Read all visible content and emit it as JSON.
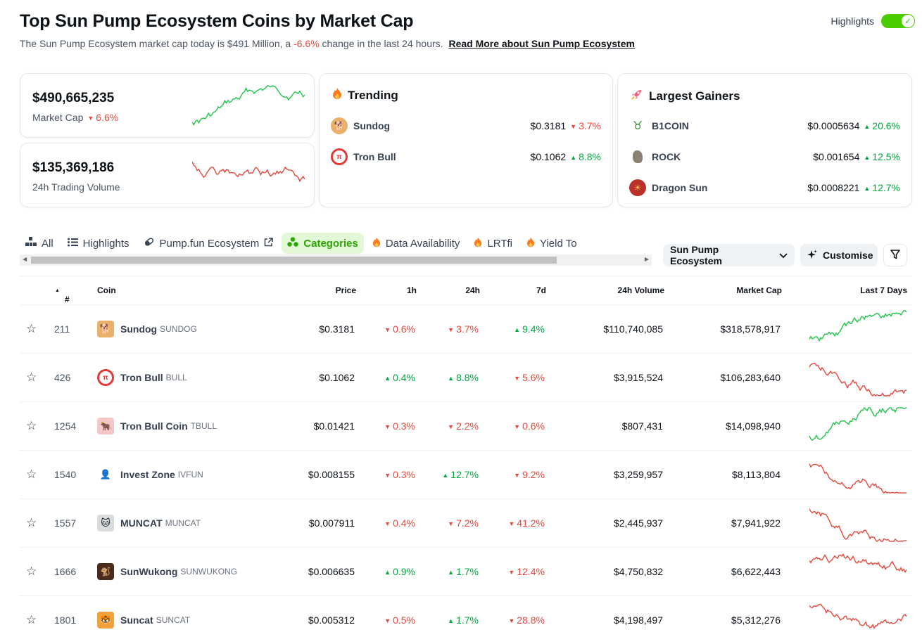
{
  "header": {
    "title": "Top Sun Pump Ecosystem Coins by Market Cap",
    "subtitle_prefix": "The Sun Pump Ecosystem market cap today is $491 Million, a",
    "subtitle_change": "-6.6%",
    "subtitle_suffix": "change in the last 24 hours.",
    "read_more": "Read More about Sun Pump Ecosystem",
    "highlights_label": "Highlights",
    "highlights_on": true
  },
  "stats": {
    "market_cap": {
      "value": "$490,665,235",
      "label": "Market Cap",
      "change": "6.6%"
    },
    "volume": {
      "value": "$135,369,186",
      "label": "24h Trading Volume"
    }
  },
  "trending": {
    "title": "Trending",
    "items": [
      {
        "name": "Sundog",
        "price": "$0.3181",
        "change": "3.7%",
        "dir": "down"
      },
      {
        "name": "Tron Bull",
        "price": "$0.1062",
        "change": "8.8%",
        "dir": "up"
      }
    ]
  },
  "gainers": {
    "title": "Largest Gainers",
    "items": [
      {
        "name": "B1COIN",
        "price": "$0.0005634",
        "change": "20.6%",
        "dir": "up"
      },
      {
        "name": "ROCK",
        "price": "$0.001654",
        "change": "12.5%",
        "dir": "up"
      },
      {
        "name": "Dragon Sun",
        "price": "$0.0008221",
        "change": "12.7%",
        "dir": "up"
      }
    ]
  },
  "tabs": [
    "All",
    "Highlights",
    "Pump.fun Ecosystem",
    "Categories",
    "Data Availability",
    "LRTfi",
    "Yield To"
  ],
  "active_tab": "Categories",
  "controls": {
    "category_select": "Sun Pump Ecosystem",
    "customise": "Customise"
  },
  "table": {
    "columns": [
      "#",
      "Coin",
      "Price",
      "1h",
      "24h",
      "7d",
      "24h Volume",
      "Market Cap",
      "Last 7 Days"
    ],
    "rows": [
      {
        "rank": "211",
        "name": "Sundog",
        "symbol": "SUNDOG",
        "price": "$0.3181",
        "h1": "0.6%",
        "h1_dir": "down",
        "h24": "3.7%",
        "h24_dir": "down",
        "d7": "9.4%",
        "d7_dir": "up",
        "volume": "$110,740,085",
        "mcap": "$318,578,917",
        "trend": "up"
      },
      {
        "rank": "426",
        "name": "Tron Bull",
        "symbol": "BULL",
        "price": "$0.1062",
        "h1": "0.4%",
        "h1_dir": "up",
        "h24": "8.8%",
        "h24_dir": "up",
        "d7": "5.6%",
        "d7_dir": "down",
        "volume": "$3,915,524",
        "mcap": "$106,283,640",
        "trend": "down"
      },
      {
        "rank": "1254",
        "name": "Tron Bull Coin",
        "symbol": "TBULL",
        "price": "$0.01421",
        "h1": "0.3%",
        "h1_dir": "down",
        "h24": "2.2%",
        "h24_dir": "down",
        "d7": "0.6%",
        "d7_dir": "down",
        "volume": "$807,431",
        "mcap": "$14,098,940",
        "trend": "up"
      },
      {
        "rank": "1540",
        "name": "Invest Zone",
        "symbol": "IVFUN",
        "price": "$0.008155",
        "h1": "0.3%",
        "h1_dir": "down",
        "h24": "12.7%",
        "h24_dir": "up",
        "d7": "9.2%",
        "d7_dir": "down",
        "volume": "$3,259,957",
        "mcap": "$8,113,804",
        "trend": "down"
      },
      {
        "rank": "1557",
        "name": "MUNCAT",
        "symbol": "MUNCAT",
        "price": "$0.007911",
        "h1": "0.4%",
        "h1_dir": "down",
        "h24": "7.2%",
        "h24_dir": "down",
        "d7": "41.2%",
        "d7_dir": "down",
        "volume": "$2,445,937",
        "mcap": "$7,941,922",
        "trend": "down"
      },
      {
        "rank": "1666",
        "name": "SunWukong",
        "symbol": "SUNWUKONG",
        "price": "$0.006635",
        "h1": "0.9%",
        "h1_dir": "up",
        "h24": "1.7%",
        "h24_dir": "up",
        "d7": "12.4%",
        "d7_dir": "down",
        "volume": "$4,750,832",
        "mcap": "$6,622,443",
        "trend": "down"
      },
      {
        "rank": "1801",
        "name": "Suncat",
        "symbol": "SUNCAT",
        "price": "$0.005312",
        "h1": "0.5%",
        "h1_dir": "down",
        "h24": "1.7%",
        "h24_dir": "up",
        "d7": "28.8%",
        "d7_dir": "down",
        "volume": "$4,198,497",
        "mcap": "$5,312,276",
        "trend": "down"
      }
    ]
  },
  "colors": {
    "up": "#00a83e",
    "down": "#e5483b",
    "accent": "#4bcc00",
    "spark_up": "#1fc54a",
    "spark_down": "#e5483b"
  }
}
